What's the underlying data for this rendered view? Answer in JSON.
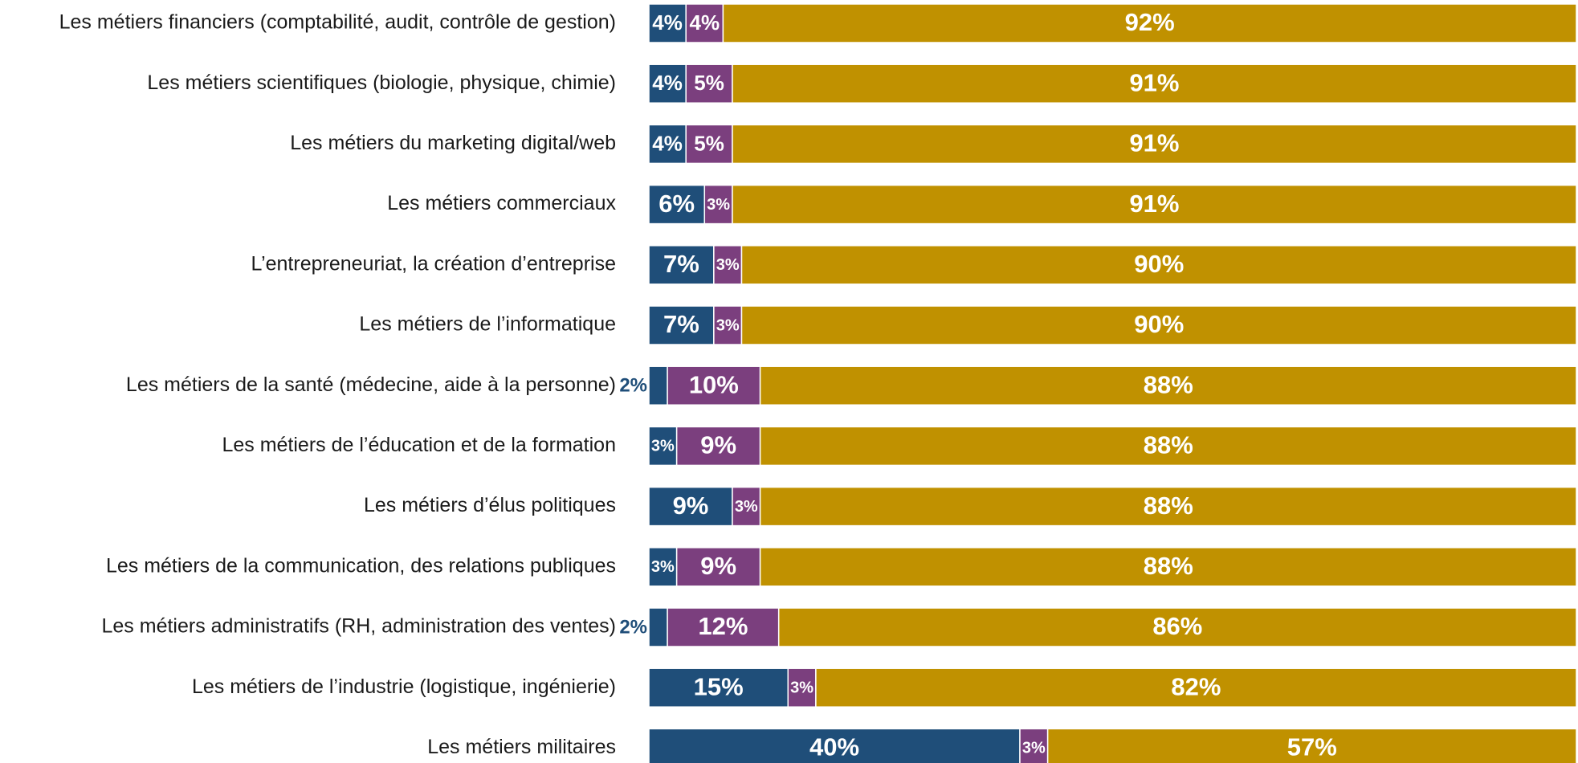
{
  "chart_data": {
    "type": "stacked-bar-horizontal",
    "categories": [
      "Les métiers financiers (comptabilité, audit, contrôle de gestion)",
      "Les métiers scientifiques (biologie, physique, chimie)",
      "Les métiers du marketing digital/web",
      "Les métiers commerciaux",
      "L’entrepreneuriat, la création d’entreprise",
      "Les métiers de l’informatique",
      "Les métiers de la santé (médecine, aide à la personne)",
      "Les métiers de l’éducation et de la formation",
      "Les métiers d’élus politiques",
      "Les métiers de la communication, des relations publiques",
      "Les métiers administratifs (RH, administration des ventes)",
      "Les métiers de l’industrie (logistique, ingénierie)",
      "Les métiers militaires"
    ],
    "xlim": [
      0,
      100
    ],
    "series": [
      {
        "color": "#1f4e79",
        "values": [
          4,
          4,
          4,
          6,
          7,
          7,
          2,
          3,
          9,
          3,
          2,
          15,
          40
        ],
        "value_labels": [
          "4%",
          "4%",
          "4%",
          "6%",
          "7%",
          "7%",
          "2%",
          "3%",
          "9%",
          "3%",
          "2%",
          "15%",
          "40%"
        ]
      },
      {
        "color": "#7b3f7e",
        "values": [
          4,
          5,
          5,
          3,
          3,
          3,
          10,
          9,
          3,
          9,
          12,
          3,
          3
        ],
        "value_labels": [
          "4%",
          "5%",
          "5%",
          "3%",
          "3%",
          "3%",
          "10%",
          "9%",
          "3%",
          "9%",
          "12%",
          "3%",
          "3%"
        ]
      },
      {
        "color": "#c09100",
        "values": [
          92,
          91,
          91,
          91,
          90,
          90,
          88,
          88,
          88,
          88,
          86,
          82,
          57
        ],
        "value_labels": [
          "92%",
          "91%",
          "91%",
          "91%",
          "90%",
          "90%",
          "88%",
          "88%",
          "88%",
          "88%",
          "86%",
          "82%",
          "57%"
        ]
      }
    ]
  }
}
